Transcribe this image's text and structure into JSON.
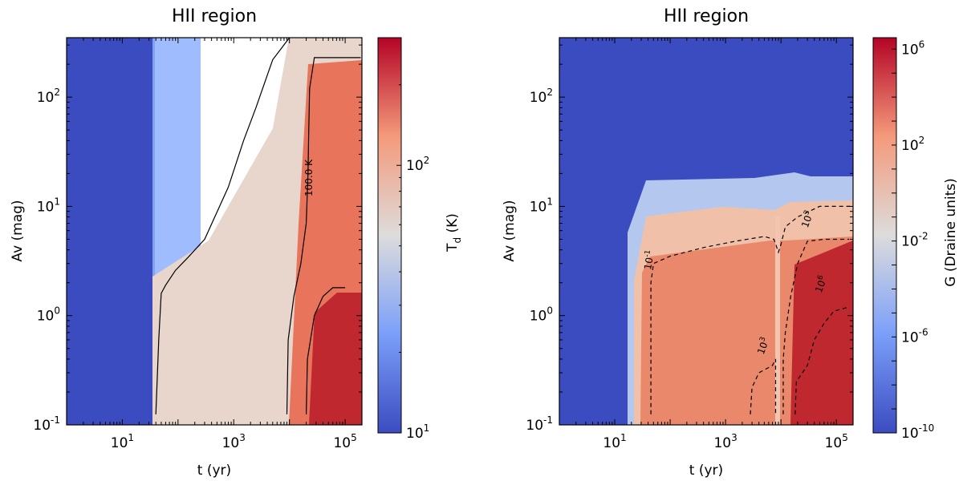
{
  "chart_data": [
    {
      "type": "heatmap",
      "title": "HII region",
      "xlabel": "t (yr)",
      "ylabel": "Av (mag)",
      "xscale": "log",
      "yscale": "log",
      "xlim": [
        1,
        200000
      ],
      "ylim": [
        0.1,
        350
      ],
      "xticks": [
        {
          "v": 10,
          "base": "10",
          "exp": "1"
        },
        {
          "v": 1000,
          "base": "10",
          "exp": "3"
        },
        {
          "v": 100000,
          "base": "10",
          "exp": "5"
        }
      ],
      "yticks": [
        {
          "v": 0.1,
          "base": "10",
          "exp": "-1"
        },
        {
          "v": 1,
          "base": "10",
          "exp": "0"
        },
        {
          "v": 10,
          "base": "10",
          "exp": "1"
        },
        {
          "v": 100,
          "base": "10",
          "exp": "2"
        }
      ],
      "colorbar": {
        "label_main": "T",
        "label_sub": "d",
        "label_unit": " (K)",
        "scale": "log",
        "range": [
          10,
          300
        ],
        "cmap": "coolwarm",
        "ticks": [
          {
            "v": 10,
            "base": "10",
            "exp": "1"
          },
          {
            "v": 100,
            "base": "10",
            "exp": "2"
          }
        ]
      },
      "contours": [
        {
          "level": 30,
          "style": "solid",
          "points": [
            [
              40,
              0.125
            ],
            [
              45,
              0.6
            ],
            [
              50,
              1.6
            ],
            [
              60,
              1.9
            ],
            [
              90,
              2.6
            ],
            [
              150,
              3.4
            ],
            [
              300,
              5
            ],
            [
              800,
              15
            ],
            [
              1500,
              40
            ],
            [
              2500,
              80
            ],
            [
              5000,
              220
            ],
            [
              10000,
              350
            ]
          ]
        },
        {
          "level": 100,
          "label": "100.0 K",
          "style": "solid",
          "points": [
            [
              9000,
              0.125
            ],
            [
              9500,
              0.6
            ],
            [
              12000,
              1.5
            ],
            [
              16000,
              3
            ],
            [
              20000,
              7
            ],
            [
              21500,
              20
            ],
            [
              22000,
              40
            ],
            [
              23000,
              120
            ],
            [
              28000,
              230
            ],
            [
              190000,
              230
            ]
          ]
        },
        {
          "level": 200,
          "style": "solid",
          "points": [
            [
              20000,
              0.125
            ],
            [
              21000,
              0.4
            ],
            [
              28000,
              1
            ],
            [
              40000,
              1.5
            ],
            [
              60000,
              1.8
            ],
            [
              100000,
              1.8
            ]
          ]
        }
      ]
    },
    {
      "type": "heatmap",
      "title": "HII region",
      "xlabel": "t (yr)",
      "ylabel": "Av (mag)",
      "xscale": "log",
      "yscale": "log",
      "xlim": [
        1,
        200000
      ],
      "ylim": [
        0.1,
        350
      ],
      "xticks": [
        {
          "v": 10,
          "base": "10",
          "exp": "1"
        },
        {
          "v": 1000,
          "base": "10",
          "exp": "3"
        },
        {
          "v": 100000,
          "base": "10",
          "exp": "5"
        }
      ],
      "yticks": [
        {
          "v": 0.1,
          "base": "10",
          "exp": "-1"
        },
        {
          "v": 1,
          "base": "10",
          "exp": "0"
        },
        {
          "v": 10,
          "base": "10",
          "exp": "1"
        },
        {
          "v": 100,
          "base": "10",
          "exp": "2"
        }
      ],
      "colorbar": {
        "label_main": "G (Draine units)",
        "label_sub": "",
        "label_unit": "",
        "scale": "log",
        "range": [
          1e-10,
          3000000.0
        ],
        "cmap": "coolwarm",
        "ticks": [
          {
            "v": 1e-10,
            "base": "10",
            "exp": "-10"
          },
          {
            "v": 1e-06,
            "base": "10",
            "exp": "-6"
          },
          {
            "v": 0.01,
            "base": "10",
            "exp": "-2"
          },
          {
            "v": 100,
            "base": "10",
            "exp": "2"
          },
          {
            "v": 1000000.0,
            "base": "10",
            "exp": "6"
          }
        ]
      },
      "contours": [
        {
          "level": 0.1,
          "label_base": "10",
          "label_exp": "-1",
          "style": "dashed",
          "points": [
            [
              45,
              0.125
            ],
            [
              45,
              0.8
            ],
            [
              45,
              2
            ],
            [
              50,
              3
            ],
            [
              100,
              3.5
            ],
            [
              400,
              4.2
            ],
            [
              1500,
              4.8
            ],
            [
              5000,
              5.3
            ],
            [
              7500,
              5
            ],
            [
              9000,
              3.8
            ],
            [
              10000,
              4.5
            ],
            [
              12000,
              6.5
            ],
            [
              20000,
              8
            ],
            [
              50000,
              10
            ],
            [
              180000,
              10
            ]
          ]
        },
        {
          "level": 1000,
          "label_base": "10",
          "label_exp": "3",
          "style": "dashed",
          "points": [
            [
              2800,
              0.125
            ],
            [
              3000,
              0.22
            ],
            [
              4000,
              0.3
            ],
            [
              7000,
              0.35
            ],
            [
              8000,
              0.4
            ],
            [
              8000,
              0.3
            ],
            [
              8000,
              0.125
            ]
          ]
        },
        {
          "level": 1000,
          "label_base": "10",
          "label_exp": "3",
          "style": "dashed",
          "points": [
            [
              11000,
              0.125
            ],
            [
              11000,
              0.4
            ],
            [
              12000,
              0.7
            ],
            [
              15000,
              1.5
            ],
            [
              20000,
              3
            ],
            [
              30000,
              4.8
            ],
            [
              60000,
              5
            ],
            [
              170000,
              5
            ]
          ]
        },
        {
          "level": 1000000.0,
          "label_base": "10",
          "label_exp": "6",
          "style": "dashed",
          "points": [
            [
              18000,
              0.125
            ],
            [
              19000,
              0.25
            ],
            [
              30000,
              0.35
            ],
            [
              40000,
              0.6
            ],
            [
              60000,
              0.85
            ],
            [
              90000,
              1.1
            ],
            [
              170000,
              1.2
            ]
          ]
        }
      ]
    }
  ]
}
